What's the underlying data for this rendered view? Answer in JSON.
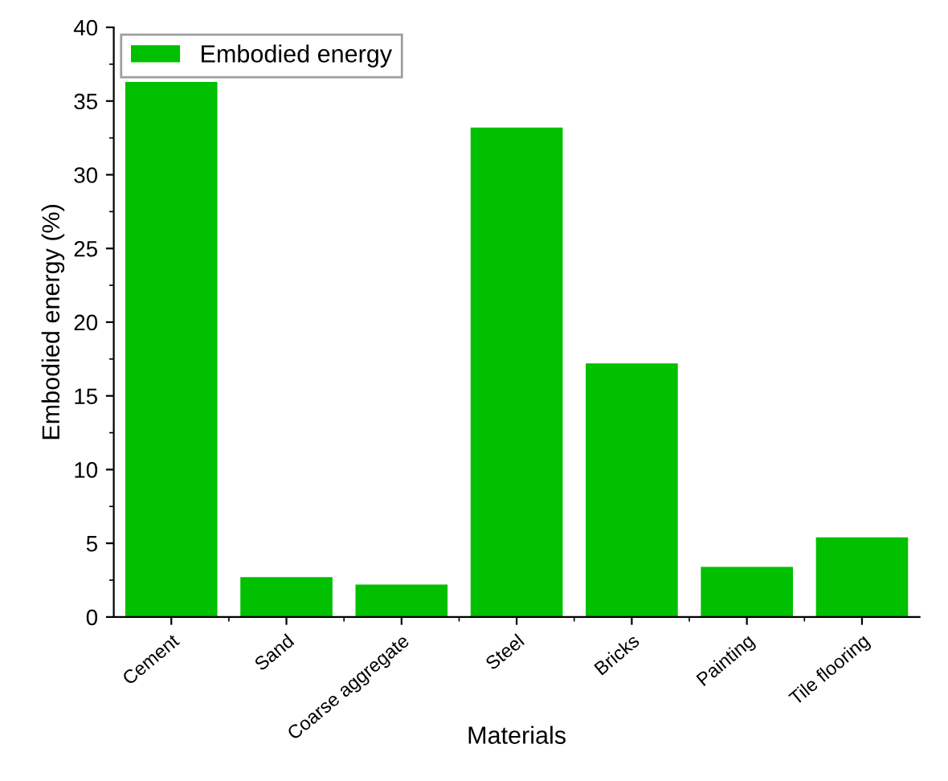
{
  "chart_data": {
    "type": "bar",
    "xlabel": "Materials",
    "ylabel": "Embodied energy (%)",
    "categories": [
      "Cement",
      "Sand",
      "Coarse aggregate",
      "Steel",
      "Bricks",
      "Painting",
      "Tile flooring"
    ],
    "series": [
      {
        "name": "Embodied energy",
        "color": "#00c000",
        "values": [
          36.3,
          2.7,
          2.2,
          33.2,
          17.2,
          3.4,
          5.4
        ]
      }
    ],
    "ylim": [
      0,
      40
    ],
    "yticks": [
      0,
      5,
      10,
      15,
      20,
      25,
      30,
      35,
      40
    ],
    "grid": false,
    "legend": "top left"
  }
}
